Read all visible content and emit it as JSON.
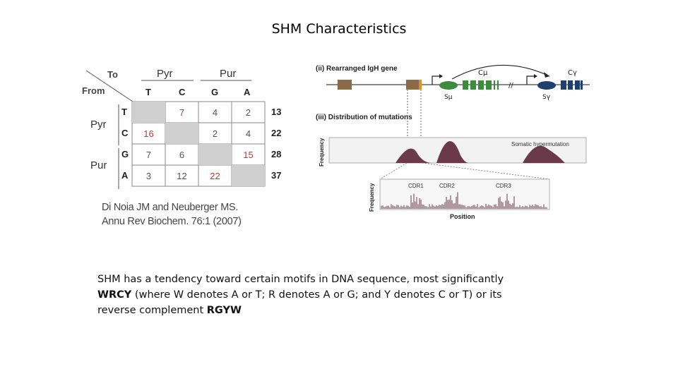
{
  "slide": {
    "title": "SHM Characteristics",
    "body_text": {
      "part1": "SHM has a tendency toward certain motifs in DNA sequence, most significantly ",
      "motif1": "WRCY",
      "part2": " (where W denotes A or T; R denotes A or G; and Y denotes C or T) or its reverse complement ",
      "motif2": "RGYW"
    }
  },
  "matrix": {
    "to_label": "To",
    "from_label": "From",
    "col_groups": [
      "Pyr",
      "Pur"
    ],
    "row_groups": [
      "Pyr",
      "Pur"
    ],
    "col_bases": [
      "T",
      "C",
      "G",
      "A"
    ],
    "row_bases": [
      "T",
      "C",
      "G",
      "A"
    ],
    "rows": [
      {
        "base": "T",
        "cells": [
          "",
          "7",
          "4",
          "2"
        ],
        "red": [
          false,
          true,
          false,
          false
        ],
        "total": "13"
      },
      {
        "base": "C",
        "cells": [
          "16",
          "",
          "2",
          "4"
        ],
        "red": [
          true,
          false,
          false,
          false
        ],
        "total": "22"
      },
      {
        "base": "G",
        "cells": [
          "7",
          "6",
          "",
          "15"
        ],
        "red": [
          false,
          false,
          false,
          true
        ],
        "total": "28"
      },
      {
        "base": "A",
        "cells": [
          "3",
          "12",
          "22",
          ""
        ],
        "red": [
          false,
          false,
          true,
          false
        ],
        "total": "37"
      }
    ],
    "citation_line1": "Di Noia JM and Neuberger MS.",
    "citation_line2": "Annu Rev Biochem. 76:1 (2007)"
  },
  "figure": {
    "panel_ii_title": "(ii) Rearranged IgH gene",
    "panel_iii_title": "(iii) Distribution of mutations",
    "c_mu_label": "Cμ",
    "c_gamma_label": "Cγ",
    "s_mu_label": "Sμ",
    "s_gamma_label": "Sγ",
    "frequency_label": "Frequency",
    "shm_label": "Somatic hypermutation",
    "cdr1": "CDR1",
    "cdr2": "CDR2",
    "cdr3": "CDR3",
    "position_label": "Position",
    "colors": {
      "maroon": "#6b3a4a",
      "green": "#3d8b3d",
      "navy": "#1f3f6e",
      "brown": "#8b6a45",
      "orange": "#d9952b"
    }
  }
}
